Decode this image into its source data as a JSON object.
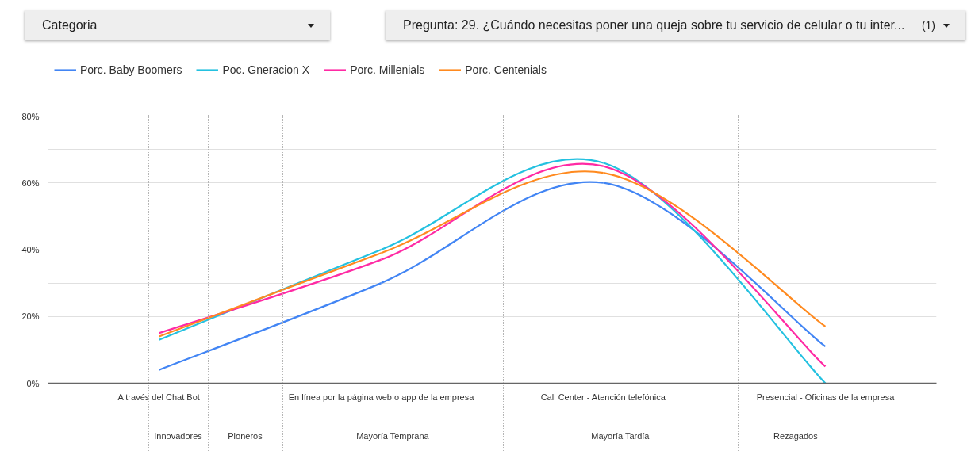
{
  "chart_data": {
    "type": "line",
    "categories": [
      "A través del Chat Bot",
      "En línea por la página web o app de la empresa",
      "Call Center - Atención telefónica",
      "Presencial - Oficinas de la empresa"
    ],
    "series": [
      {
        "name": "Porc. Baby Boomers",
        "color": "#4285f4",
        "values": [
          4,
          30,
          60,
          11
        ]
      },
      {
        "name": "Poc. Gneracion X",
        "color": "#24c1e0",
        "values": [
          13,
          40,
          66,
          0
        ]
      },
      {
        "name": "Porc. Millenials",
        "color": "#ff2aa4",
        "values": [
          15,
          37,
          65,
          5
        ]
      },
      {
        "name": "Porc. Centenials",
        "color": "#ff8a1f",
        "values": [
          14,
          39,
          63,
          17
        ]
      }
    ],
    "ylim": [
      0,
      80
    ],
    "yticks": [
      {
        "value": 0,
        "label": "0%"
      },
      {
        "value": 10,
        "label": null
      },
      {
        "value": 20,
        "label": "20%"
      },
      {
        "value": 30,
        "label": null
      },
      {
        "value": 40,
        "label": "40%"
      },
      {
        "value": 50,
        "label": null
      },
      {
        "value": 60,
        "label": "60%"
      },
      {
        "value": 70,
        "label": null
      },
      {
        "value": 80,
        "label": "80%"
      }
    ],
    "grid": "y",
    "legend": "top left",
    "annotations": [
      "Categoria",
      "Pregunta: 29. ¿Cuándo necesitas poner una queja sobre tu servicio de celular o tu inter...",
      "(1)",
      "Innovadores",
      "Pioneros",
      "Mayoría Temprana",
      "Mayoría Tardía",
      "Rezagados"
    ]
  }
}
